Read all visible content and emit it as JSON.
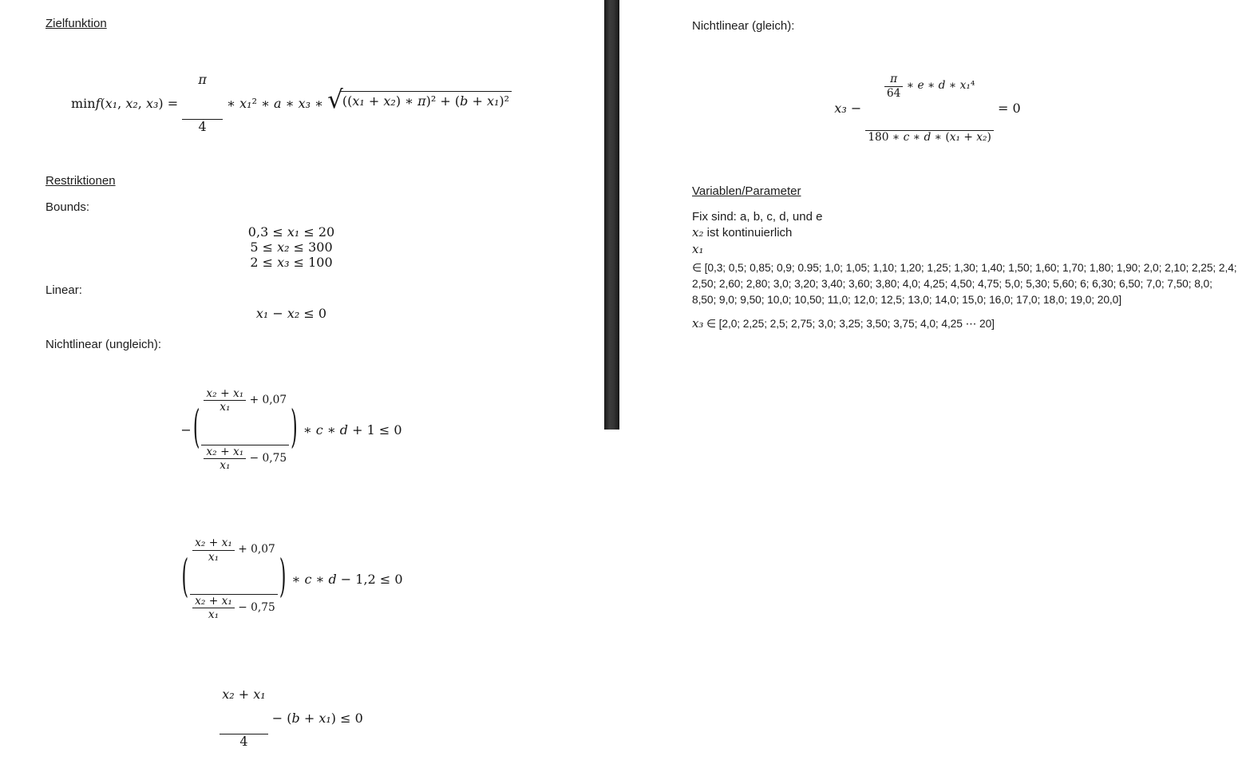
{
  "colors": {
    "background": "#ffffff",
    "divider_bar": "#2e2e2e",
    "text": "#1b1b1b"
  },
  "symbols": {
    "lparen": "(",
    "rparen": ")",
    "radical": "√"
  },
  "left": {
    "heading_zielfunktion": "Zielfunktion",
    "objective": {
      "lhs": [
        {
          "t": "min"
        },
        {
          "t": "f",
          "i": 1
        },
        {
          "t": "("
        },
        {
          "t": "x₁",
          "i": 1
        },
        {
          "t": ", "
        },
        {
          "t": "x₂",
          "i": 1
        },
        {
          "t": ", "
        },
        {
          "t": "x₃",
          "i": 1
        },
        {
          "t": ") = "
        }
      ],
      "frac_num": [
        {
          "t": "π",
          "i": 1
        }
      ],
      "frac_den": [
        {
          "t": "4"
        }
      ],
      "mid": [
        {
          "t": " ∗ "
        },
        {
          "t": "x₁",
          "i": 1
        },
        {
          "t": "² ∗ "
        },
        {
          "t": "a",
          "i": 1
        },
        {
          "t": " ∗ "
        },
        {
          "t": "x₃",
          "i": 1
        },
        {
          "t": " ∗ "
        }
      ],
      "radicand": [
        {
          "t": "(("
        },
        {
          "t": "x₁",
          "i": 1
        },
        {
          "t": " + "
        },
        {
          "t": "x₂",
          "i": 1
        },
        {
          "t": ") ∗ "
        },
        {
          "t": "π",
          "i": 1
        },
        {
          "t": ")² + ("
        },
        {
          "t": "b",
          "i": 1
        },
        {
          "t": " + "
        },
        {
          "t": "x₁",
          "i": 1
        },
        {
          "t": ")²"
        }
      ]
    },
    "heading_restriktionen": "Restriktionen",
    "bounds_label": "Bounds:",
    "bounds": [
      [
        {
          "t": "0,3 ≤ "
        },
        {
          "t": "x₁",
          "i": 1
        },
        {
          "t": " ≤ 20"
        }
      ],
      [
        {
          "t": "5 ≤ "
        },
        {
          "t": "x₂",
          "i": 1
        },
        {
          "t": " ≤ 300"
        }
      ],
      [
        {
          "t": "2 ≤ "
        },
        {
          "t": "x₃",
          "i": 1
        },
        {
          "t": " ≤ 100"
        }
      ]
    ],
    "linear_label": "Linear:",
    "linear": [
      {
        "t": "x₁",
        "i": 1
      },
      {
        "t": " − "
      },
      {
        "t": "x₂",
        "i": 1
      },
      {
        "t": " ≤ 0"
      }
    ],
    "nonlinear_ineq_label": "Nichtlinear (ungleich):",
    "ratio": {
      "num_frac_num": [
        {
          "t": "x₂",
          "i": 1
        },
        {
          "t": " + "
        },
        {
          "t": "x₁",
          "i": 1
        }
      ],
      "num_frac_den": [
        {
          "t": "x₁",
          "i": 1
        }
      ],
      "num_suffix": [
        {
          "t": " + 0,07"
        }
      ],
      "den_frac_num": [
        {
          "t": "x₂",
          "i": 1
        },
        {
          "t": " + "
        },
        {
          "t": "x₁",
          "i": 1
        }
      ],
      "den_frac_den": [
        {
          "t": "x₁",
          "i": 1
        }
      ],
      "den_suffix": [
        {
          "t": " − 0,75"
        }
      ]
    },
    "nl1": {
      "prefix": [
        {
          "t": "−"
        }
      ],
      "suffix": [
        {
          "t": " ∗ "
        },
        {
          "t": "c",
          "i": 1
        },
        {
          "t": " ∗ "
        },
        {
          "t": "d",
          "i": 1
        },
        {
          "t": " + 1 ≤ 0"
        }
      ]
    },
    "nl2": {
      "suffix": [
        {
          "t": " ∗ "
        },
        {
          "t": "c",
          "i": 1
        },
        {
          "t": " ∗ "
        },
        {
          "t": "d",
          "i": 1
        },
        {
          "t": " − 1,2 ≤ 0"
        }
      ]
    },
    "nl3": {
      "frac_num": [
        {
          "t": "x₂",
          "i": 1
        },
        {
          "t": " + "
        },
        {
          "t": "x₁",
          "i": 1
        }
      ],
      "frac_den": [
        {
          "t": "4"
        }
      ],
      "suffix": [
        {
          "t": " − ("
        },
        {
          "t": "b",
          "i": 1
        },
        {
          "t": " + "
        },
        {
          "t": "x₁",
          "i": 1
        },
        {
          "t": ") ≤ 0"
        }
      ]
    }
  },
  "right": {
    "nonlinear_eq_label": "Nichtlinear (gleich):",
    "equality": {
      "lhs": [
        {
          "t": "x₃",
          "i": 1
        },
        {
          "t": " − "
        }
      ],
      "pi_frac_num": [
        {
          "t": "π",
          "i": 1
        }
      ],
      "pi_frac_den": [
        {
          "t": "64"
        }
      ],
      "num_suffix": [
        {
          "t": " ∗ "
        },
        {
          "t": "e",
          "i": 1
        },
        {
          "t": " ∗ "
        },
        {
          "t": "d",
          "i": 1
        },
        {
          "t": " ∗ "
        },
        {
          "t": "x₁",
          "i": 1
        },
        {
          "t": "⁴"
        }
      ],
      "den": [
        {
          "t": "180 ∗ "
        },
        {
          "t": "c",
          "i": 1
        },
        {
          "t": " ∗ "
        },
        {
          "t": "d",
          "i": 1
        },
        {
          "t": " ∗ ("
        },
        {
          "t": "x₁",
          "i": 1
        },
        {
          "t": " + "
        },
        {
          "t": "x₂",
          "i": 1
        },
        {
          "t": ")"
        }
      ],
      "rhs": [
        {
          "t": " = 0"
        }
      ]
    },
    "heading_variablen": "Variablen/Parameter",
    "fix_line": "Fix sind: a, b, c, d, und e",
    "x2_line": [
      {
        "t": "x₂",
        "i": 1
      },
      {
        "t": " ist kontinuierlich"
      }
    ],
    "x1_line": [
      {
        "t": "x₁",
        "i": 1
      }
    ],
    "x1_domain_lines": [
      "∈ [0,3; 0,5; 0,85; 0,9; 0.95; 1,0; 1,05; 1,10; 1,20; 1,25; 1,30; 1,40; 1,50; 1,60; 1,70; 1,80; 1,90; 2,0; 2,10; 2,25; 2,4;",
      "2,50; 2,60; 2,80; 3,0; 3,20; 3,40; 3,60; 3,80; 4,0; 4,25; 4,50; 4,75; 5,0; 5,30; 5,60; 6; 6,30; 6,50; 7,0; 7,50; 8,0;",
      "8,50; 9,0; 9,50; 10,0; 10,50; 11,0; 12,0; 12,5; 13,0; 14,0; 15,0; 16,0; 17,0; 18,0; 19,0; 20,0]"
    ],
    "x3_line": [
      {
        "t": "x₃",
        "i": 1
      },
      {
        "t": " ∈ [2,0; 2,25; 2,5; 2,75; 3,0; 3,25; 3,50; 3,75; 4,0; 4,25 ⋯ 20]"
      }
    ]
  }
}
